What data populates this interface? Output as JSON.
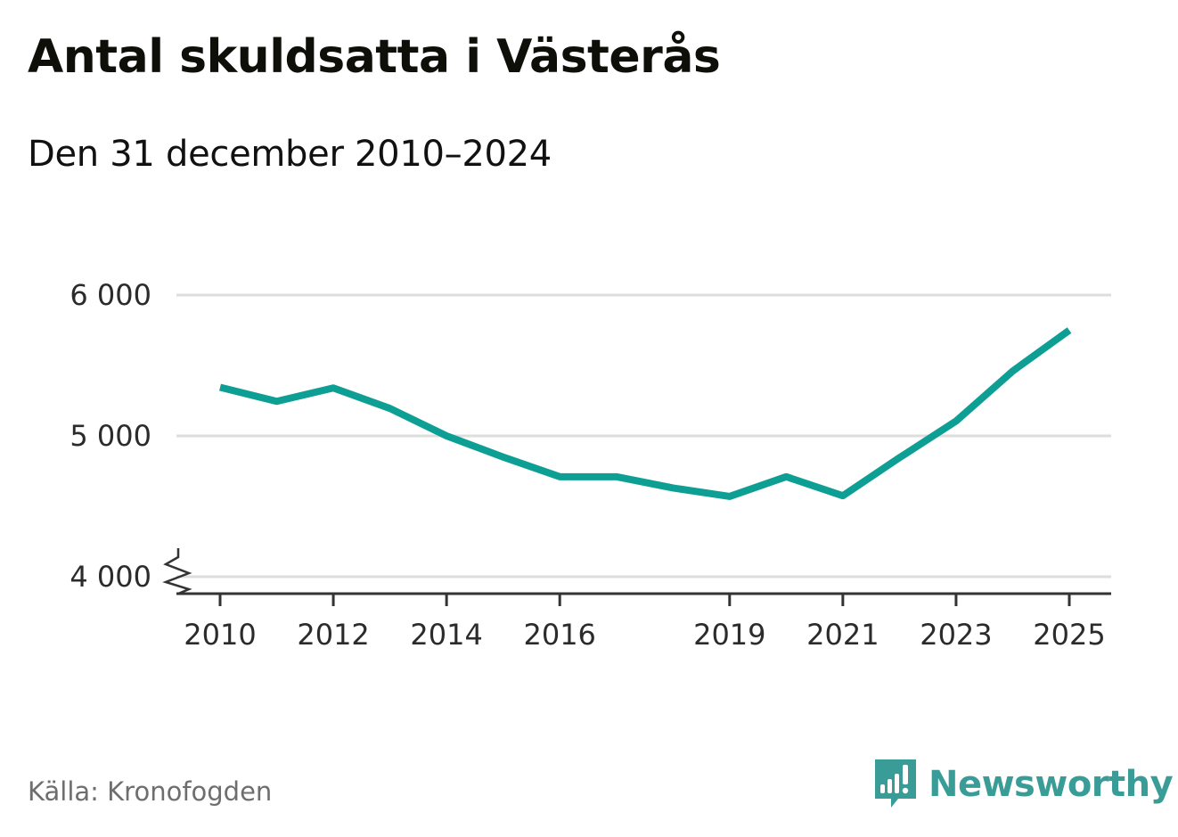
{
  "title": "Antal skuldsatta i Västerås",
  "subtitle": "Den 31 december 2010–2024",
  "source": "Källa: Kronofogden",
  "brand": {
    "name": "Newsworthy",
    "color": "#3a9c96"
  },
  "colors": {
    "line": "#0e9f94",
    "grid": "#dddddd",
    "axis": "#333333"
  },
  "chart_data": {
    "type": "line",
    "title": "Antal skuldsatta i Västerås",
    "subtitle": "Den 31 december 2010–2024",
    "xlabel": "",
    "ylabel": "",
    "ylim": [
      4000,
      6000
    ],
    "xlim": [
      2010,
      2025
    ],
    "y_axis_break": true,
    "grid": true,
    "y_ticks": [
      {
        "value": 6000,
        "label": "6 000"
      },
      {
        "value": 5000,
        "label": "5 000"
      },
      {
        "value": 4000,
        "label": "4 000"
      }
    ],
    "x_ticks": [
      {
        "value": 2010,
        "label": "2010"
      },
      {
        "value": 2012,
        "label": "2012"
      },
      {
        "value": 2014,
        "label": "2014"
      },
      {
        "value": 2016,
        "label": "2016"
      },
      {
        "value": 2019,
        "label": "2019"
      },
      {
        "value": 2021,
        "label": "2021"
      },
      {
        "value": 2023,
        "label": "2023"
      },
      {
        "value": 2025,
        "label": "2025"
      }
    ],
    "series": [
      {
        "name": "Antal skuldsatta",
        "x": [
          2010,
          2011,
          2012,
          2013,
          2014,
          2015,
          2016,
          2017,
          2018,
          2019,
          2020,
          2021,
          2022,
          2023,
          2024,
          2025
        ],
        "values": [
          5345,
          5245,
          5340,
          5195,
          5000,
          4850,
          4710,
          4710,
          4630,
          4570,
          4710,
          4575,
          4845,
          5105,
          5460,
          5750
        ]
      }
    ]
  }
}
